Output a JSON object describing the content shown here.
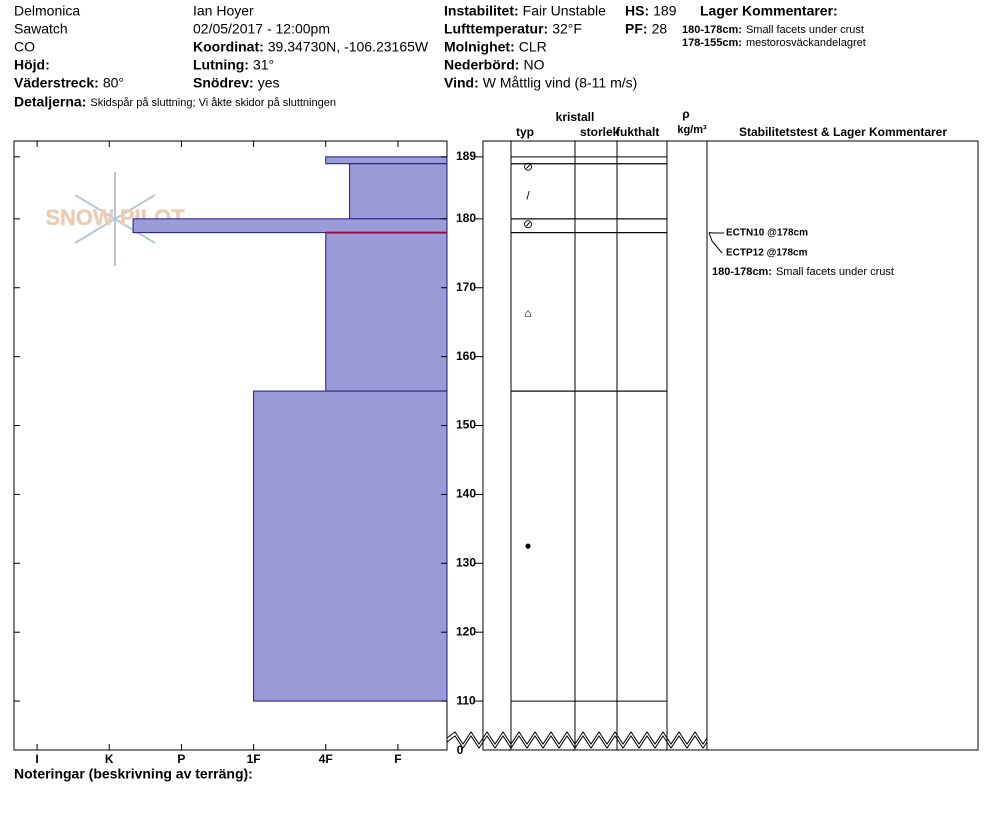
{
  "header": {
    "location": "Delmonica",
    "range": "Sawatch",
    "state": "CO",
    "elevation_label": "Höjd:",
    "aspect_label": "Väderstreck:",
    "aspect": "80°",
    "observer": "Ian Hoyer",
    "datetime": "02/05/2017 - 12:00pm",
    "coord_label": "Koordinat:",
    "coord": "39.34730N, -106.23165W",
    "slope_label": "Lutning:",
    "slope": "31°",
    "drift_label": "Snödrev:",
    "drift": "yes",
    "instability_label": "Instabilitet:",
    "instability": "Fair Unstable",
    "airtemp_label": "Lufttemperatur:",
    "airtemp": "32°F",
    "sky_label": "Molnighet:",
    "sky": "CLR",
    "precip_label": "Nederbörd:",
    "precip": "NO",
    "wind_label": "Vind:",
    "wind": "W Måttlig vind (8-11 m/s)",
    "hs_label": "HS:",
    "hs": 189,
    "pf_label": "PF:",
    "pf": 28,
    "layer_comments_title": "Lager Kommentarer:",
    "layer_comments": [
      {
        "range": "180-178cm:",
        "text": "Small facets under crust"
      },
      {
        "range": "178-155cm:",
        "text": "mestorosväckandelagret"
      }
    ],
    "details_label": "Detaljerna:",
    "details": "Skidspår på sluttning;  Vi åkte skidor på sluttningen"
  },
  "chart_data": {
    "type": "snow-profile",
    "logo": "SNOW PILOT",
    "ylim": [
      102.9,
      191.3
    ],
    "yticks": [
      110,
      120,
      130,
      140,
      150,
      160,
      170,
      180,
      189
    ],
    "axis_break_label": "0",
    "xlim": [
      6.32,
      0.32
    ],
    "xticks": [
      {
        "value": 6,
        "label": "I"
      },
      {
        "value": 5,
        "label": "K"
      },
      {
        "value": 4,
        "label": "P"
      },
      {
        "value": 3,
        "label": "1F"
      },
      {
        "value": 2,
        "label": "4F"
      },
      {
        "value": 1,
        "label": "F"
      }
    ],
    "color": "#9b9bd8",
    "layers": [
      {
        "top": 189,
        "bottom": 188,
        "hardness": 2
      },
      {
        "top": 188,
        "bottom": 180,
        "hardness": 1.67
      },
      {
        "top": 180,
        "bottom": 178,
        "hardness": 4.67
      },
      {
        "top": 178,
        "bottom": 155,
        "hardness": 2
      },
      {
        "top": 155,
        "bottom": 110,
        "hardness": 3
      }
    ],
    "layer_of_concern": 178,
    "grains": [
      {
        "height": 187.5,
        "symbol": "⊘"
      },
      {
        "height": 183.3,
        "symbol": "/"
      },
      {
        "height": 179.1,
        "symbol": "⊘"
      },
      {
        "height": 166.2,
        "symbol": "⌂"
      },
      {
        "height": 132.5,
        "symbol": "●"
      }
    ],
    "columns": {
      "crystal": "kristall",
      "type": "typ",
      "size": "storlek",
      "moisture": "fukthalt",
      "rho": "ρ",
      "density_unit": "kg/m³",
      "comments": "Stabilitetstest & Lager Kommentarer"
    },
    "tests": [
      {
        "label": "ECTN10 @178cm",
        "height": 178
      },
      {
        "label": "ECTP12 @178cm",
        "height": 178
      }
    ],
    "layer_comment": {
      "range": "180-178cm:",
      "text": "Small facets under crust"
    },
    "notes_label": "Noteringar (beskrivning av terräng):"
  }
}
